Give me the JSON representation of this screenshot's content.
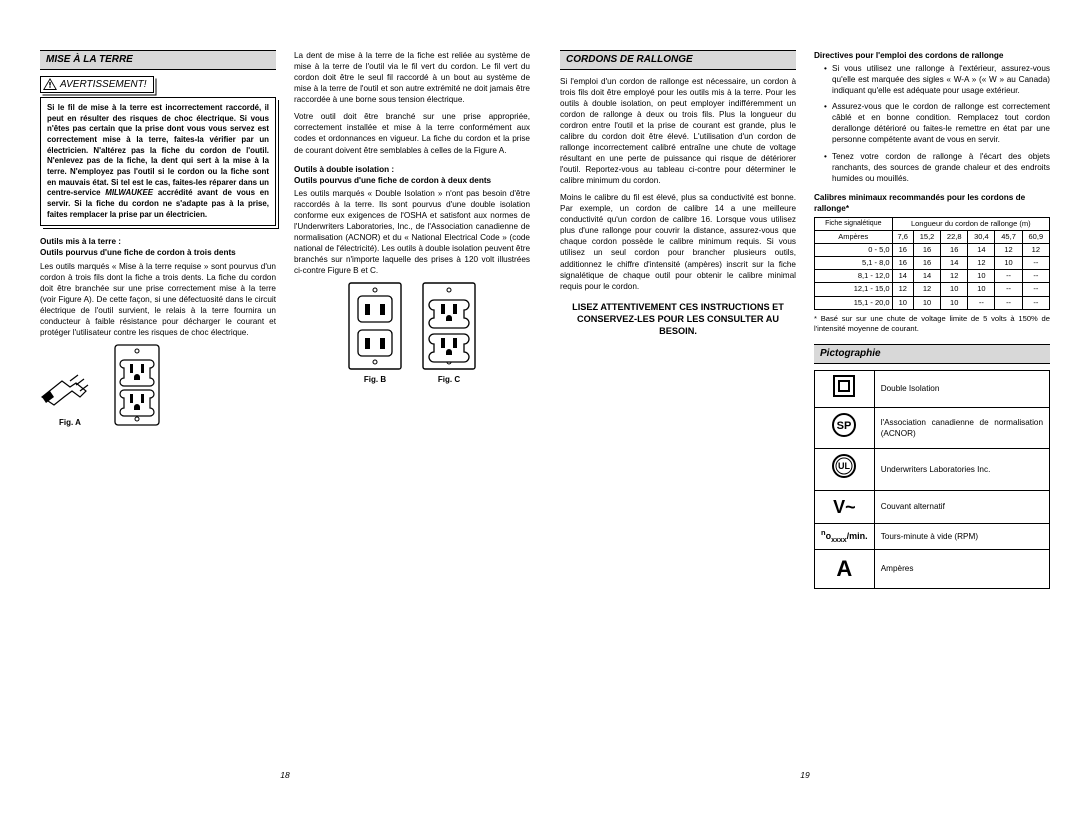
{
  "page_left": {
    "number": "18",
    "section_title": "MISE À LA TERRE",
    "warning_label": "AVERTISSEMENT!",
    "warning_body_1": "Si le fil de mise à la terre est incorrectement raccordé, il peut en résulter des risques de choc électrique. Si vous n'êtes pas certain que la prise dont vous vous servez est correctement mise à la terre, faites-la vérifier par un électricien. N'altérez pas la fiche du cordon de l'outil. N'enlevez pas de la fiche, la dent qui sert à la mise à la terre. N'employez pas l'outil si le cordon ou la fiche sont en mauvais état. Si tel est le cas, faites-les réparer dans un centre-service ",
    "warning_milwaukee": "MILWAUKEE",
    "warning_body_2": " accrédité avant de vous en servir. Si la fiche du cordon ne s'adapte pas à la prise, faites remplacer la prise par un électricien.",
    "sub1_a": "Outils mis à la terre :",
    "sub1_b": "Outils pourvus d'une fiche de cordon à trois dents",
    "para1": "Les outils marqués « Mise à la terre requise » sont pourvus d'un cordon à trois fils dont la fiche a trois dents. La fiche du cordon doit être branchée sur une prise correctement mise à la terre (voir Figure A). De cette façon, si une défectuosité dans le circuit électrique de l'outil survient, le relais à la terre fournira un conducteur à faible résistance pour décharger le courant et protéger l'utilisateur contre les risques de choc électrique.",
    "figA": "Fig. A",
    "col2_para1": "La dent de mise à la terre de la fiche est reliée au système de mise à la terre de l'outil via le fil vert du cordon. Le fil vert du cordon doit être le seul fil raccordé à un bout au système de mise à la terre de l'outil et son autre extrémité ne doit jamais être raccordée à une borne sous tension électrique.",
    "col2_para2": "Votre outil doit être branché sur une prise appropriée, correctement installée et mise à la terre conformément aux codes et ordonnances en vigueur. La fiche du cordon et la prise de courant doivent être semblables à celles de la Figure A.",
    "sub2_a": "Outils à double isolation :",
    "sub2_b": "Outils pourvus d'une fiche de cordon à deux dents",
    "col2_para3": "Les outils marqués « Double Isolation » n'ont pas besoin d'être raccordés à la terre. Ils sont pourvus d'une double isolation conforme eux exigences de l'OSHA et satisfont aux normes de l'Underwriters Laboratories, Inc., de l'Association canadienne de normalisation (ACNOR) et du « National Electrical Code » (code national de l'électricité). Les outils à double isolation peuvent être branchés sur n'importe laquelle des prises à 120 volt illustrées ci-contre Figure B et C.",
    "figB": "Fig. B",
    "figC": "Fig. C"
  },
  "page_right": {
    "number": "19",
    "section_title": "CORDONS DE RALLONGE",
    "para1": "Si l'emploi d'un cordon de rallonge est nécessaire, un cordon à trois fils doit être employé pour les outils mis à la terre. Pour les outils à double isolation, on peut employer indifféremment un cordon de rallonge à deux ou trois fils. Plus la longueur du cordron entre l'outil et la prise de courant est grande, plus le calibre du cordon doit être élevé. L'utilisation d'un cordon de rallonge incorrectement calibré entraîne une chute de voltage résultant en une perte de puissance qui risque de détériorer l'outil. Reportez-vous au tableau ci-contre pour déterminer le calibre minimum du cordon.",
    "para2": "Moins le calibre du fil est élevé, plus sa conductivité est bonne. Par exemple, un cordon de calibre 14 a une meilleure conductivité qu'un cordon de calibre 16. Lorsque vous utilisez plus d'une rallonge pour couvrir la distance, assurez-vous que chaque cordon possède le calibre minimum requis. Si vous utilisez un seul cordon pour brancher plusieurs outils, additionnez le chiffre d'intensité (ampères) inscrit sur la fiche signalétique de chaque outil pour obtenir le calibre minimal requis pour le cordon.",
    "instr1": "LISEZ ATTENTIVEMENT CES INSTRUCTIONS ET CONSERVEZ-LES POUR LES CONSULTER AU BESOIN.",
    "directives_head": "Directives pour l'emploi des cordons de rallonge",
    "bullets": [
      "Si vous utilisez une rallonge à l'extérieur, assurez-vous qu'elle est marquée des sigles « W-A » (« W » au Canada) indiquant qu'elle est adéquate pour usage extérieur.",
      "Assurez-vous que le cordon de rallonge est correctement câblé et en bonne condition. Remplacez tout cordon derallonge détérioré ou faites-le remettre en état par une personne compétente avant de vous en servir.",
      "Tenez votre cordon de rallonge à l'écart des objets ranchants, des sources de grande chaleur et des endroits humides ou mouillés."
    ],
    "table_head": "Calibres minimaux recommandés pour les cordons de rallonge*",
    "table": {
      "col_head_a": "Fiche signalétique",
      "col_head_b": "Longueur du cordon de rallonge (m)",
      "row_amp": "Ampères",
      "lengths": [
        "7,6",
        "15,2",
        "22,8",
        "30,4",
        "45,7",
        "60,9"
      ],
      "rows": [
        {
          "range": "0 - 5,0",
          "vals": [
            "16",
            "16",
            "16",
            "14",
            "12",
            "12"
          ]
        },
        {
          "range": "5,1 - 8,0",
          "vals": [
            "16",
            "16",
            "14",
            "12",
            "10",
            "--"
          ]
        },
        {
          "range": "8,1 - 12,0",
          "vals": [
            "14",
            "14",
            "12",
            "10",
            "--",
            "--"
          ]
        },
        {
          "range": "12,1 - 15,0",
          "vals": [
            "12",
            "12",
            "10",
            "10",
            "--",
            "--"
          ]
        },
        {
          "range": "15,1 - 20,0",
          "vals": [
            "10",
            "10",
            "10",
            "--",
            "--",
            "--"
          ]
        }
      ]
    },
    "footnote": "* Basé sur sur une chute de voltage limite de 5 volts à 150% de l'intensité moyenne de courant.",
    "picto_title": "Pictographie",
    "picto_rows": [
      {
        "label": "Double Isolation"
      },
      {
        "label": "l'Association canadienne de normalisation (ACNOR)"
      },
      {
        "label": "Underwriters Laboratories Inc."
      },
      {
        "label": "Couvant alternatif"
      },
      {
        "label": "Tours-minute à vide (RPM)"
      },
      {
        "label": "Ampères"
      }
    ]
  }
}
